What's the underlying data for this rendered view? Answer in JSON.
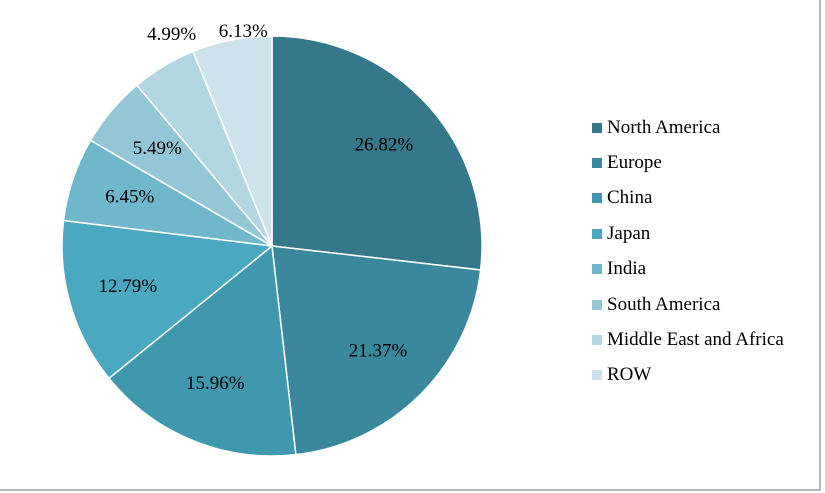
{
  "chart_data": {
    "type": "pie",
    "title": "",
    "start_angle_deg": 0,
    "direction": "clockwise",
    "legend_position": "right",
    "slices": [
      {
        "name": "North America",
        "value": 26.82,
        "label": "26.82%",
        "color": "#357889"
      },
      {
        "name": "Europe",
        "value": 21.37,
        "label": "21.37%",
        "color": "#3a889c"
      },
      {
        "name": "China",
        "value": 15.96,
        "label": "15.96%",
        "color": "#3f98ae"
      },
      {
        "name": "Japan",
        "value": 12.79,
        "label": "12.79%",
        "color": "#4aa8c1"
      },
      {
        "name": "India",
        "value": 6.45,
        "label": "6.45%",
        "color": "#6fb7cb"
      },
      {
        "name": "South America",
        "value": 5.49,
        "label": "5.49%",
        "color": "#94c7d6"
      },
      {
        "name": "Middle East and Africa",
        "value": 4.99,
        "label": "4.99%",
        "color": "#b2d6e2"
      },
      {
        "name": "ROW",
        "value": 6.13,
        "label": "6.13%",
        "color": "#cce3eb"
      }
    ]
  }
}
